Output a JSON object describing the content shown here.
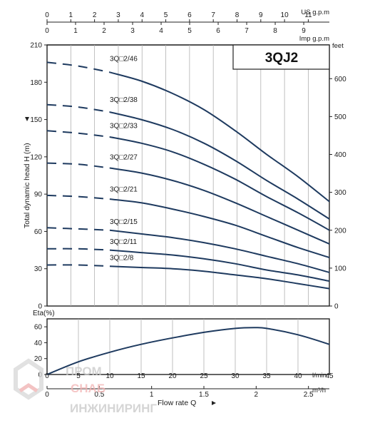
{
  "chart_data": [
    {
      "type": "line",
      "title": "3QJ2",
      "ylabel": "Total dynamic head H (m)",
      "y2label": "feet",
      "ylim": [
        0,
        210
      ],
      "y_ticks": [
        "0",
        "30",
        "60",
        "90",
        "120",
        "150",
        "180",
        "210"
      ],
      "y2_ticks": [
        "0",
        "100",
        "200",
        "300",
        "400",
        "500",
        "600"
      ],
      "top_axes": [
        {
          "unit": "US g.p.m",
          "ticks": [
            "0",
            "1",
            "2",
            "3",
            "4",
            "5",
            "6",
            "7",
            "8",
            "9",
            "10",
            "11"
          ]
        },
        {
          "unit": "Imp g.p.m",
          "ticks": [
            "0",
            "1",
            "2",
            "3",
            "4",
            "5",
            "6",
            "7",
            "8",
            "9"
          ]
        }
      ],
      "grid": "vertical",
      "x_unit": "l/min",
      "xlim": [
        0,
        45
      ],
      "series": [
        {
          "name": "3Q□2/46",
          "x": [
            0,
            5,
            10,
            15,
            20,
            25,
            30,
            35,
            40,
            45
          ],
          "values": [
            196,
            193,
            188,
            181,
            171,
            158,
            141,
            122,
            104,
            84
          ]
        },
        {
          "name": "3Q□2/38",
          "x": [
            0,
            5,
            10,
            15,
            20,
            25,
            30,
            35,
            40,
            45
          ],
          "values": [
            162,
            160,
            156,
            150,
            142,
            131,
            117,
            101,
            86,
            70
          ]
        },
        {
          "name": "3Q□2/33",
          "x": [
            0,
            5,
            10,
            15,
            20,
            25,
            30,
            35,
            40,
            45
          ],
          "values": [
            141,
            139,
            136,
            131,
            124,
            114,
            102,
            88,
            75,
            61
          ]
        },
        {
          "name": "3Q□2/27",
          "x": [
            0,
            5,
            10,
            15,
            20,
            25,
            30,
            35,
            40,
            45
          ],
          "values": [
            115,
            114,
            111,
            107,
            101,
            93,
            83,
            72,
            61,
            50
          ]
        },
        {
          "name": "3Q□2/21",
          "x": [
            0,
            5,
            10,
            15,
            20,
            25,
            30,
            35,
            40,
            45
          ],
          "values": [
            89,
            88,
            86,
            83,
            78,
            72,
            65,
            56,
            47,
            39
          ]
        },
        {
          "name": "3Q□2/15",
          "x": [
            0,
            5,
            10,
            15,
            20,
            25,
            30,
            35,
            40,
            45
          ],
          "values": [
            63,
            62,
            61,
            58,
            55,
            51,
            46,
            40,
            34,
            27
          ]
        },
        {
          "name": "3Q□2/11",
          "x": [
            0,
            5,
            10,
            15,
            20,
            25,
            30,
            35,
            40,
            45
          ],
          "values": [
            46,
            46,
            45,
            43,
            41,
            38,
            34,
            29,
            25,
            20
          ]
        },
        {
          "name": "3Q□2/8",
          "x": [
            0,
            5,
            10,
            15,
            20,
            25,
            30,
            35,
            40,
            45
          ],
          "values": [
            33,
            33,
            32,
            31,
            30,
            28,
            25,
            22,
            18,
            14
          ]
        }
      ]
    },
    {
      "type": "line",
      "ylabel": "Eta(%)",
      "ylim": [
        0,
        70
      ],
      "y_ticks": [
        "0",
        "20",
        "40",
        "60"
      ],
      "xlim": [
        0,
        45
      ],
      "x_unit": "l/min",
      "x_ticks": [
        "0",
        "5",
        "10",
        "15",
        "20",
        "25",
        "30",
        "35",
        "40",
        "45"
      ],
      "x2_unit": "m³/h",
      "x2_ticks": [
        "0",
        "0.5",
        "1",
        "1.5",
        "2",
        "2.5"
      ],
      "xlabel": "Flow rate  Q",
      "series": [
        {
          "x": [
            0,
            5,
            10,
            15,
            20,
            25,
            30,
            33,
            35,
            40,
            45
          ],
          "values": [
            0,
            16,
            28,
            38,
            46,
            53,
            58,
            59,
            58,
            50,
            38
          ]
        }
      ]
    }
  ],
  "watermark": {
    "line1": "ПРОМ",
    "line2": "СНАБ",
    "line3": "ИНЖИНИРИНГ"
  }
}
